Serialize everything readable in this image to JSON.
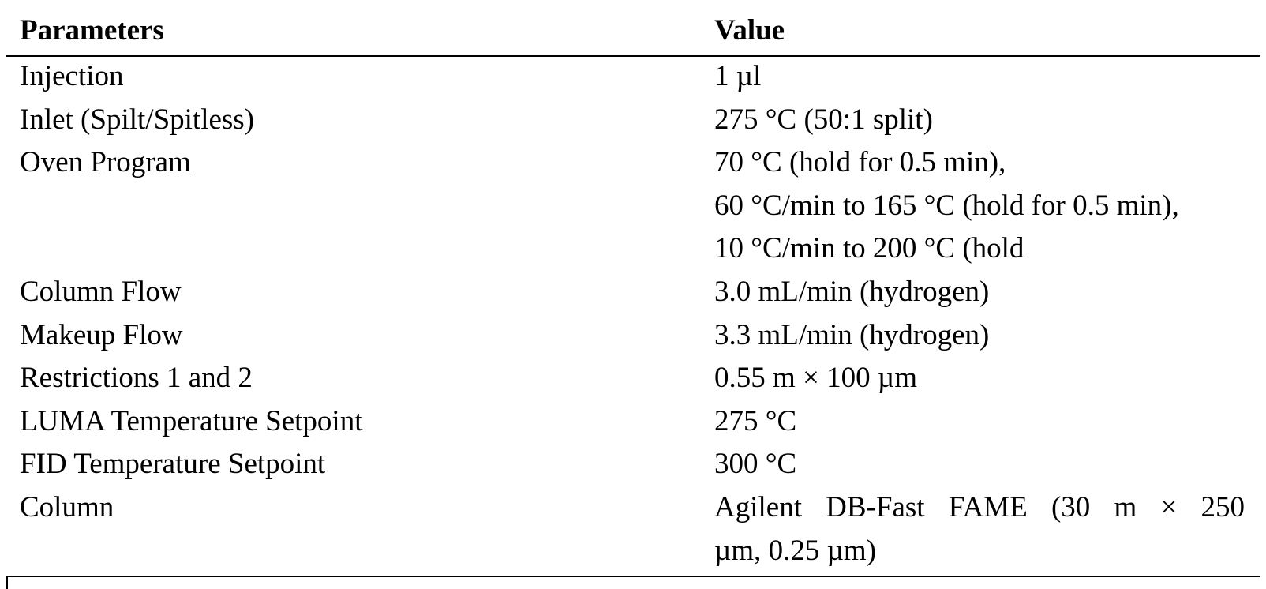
{
  "table": {
    "header": [
      "Parameters",
      "Value"
    ],
    "rows": [
      {
        "parameter": "Injection",
        "value": [
          "1 µl"
        ]
      },
      {
        "parameter": "Inlet (Spilt/Spitless)",
        "value": [
          "275 °C (50:1 split)"
        ]
      },
      {
        "parameter": "Oven Program",
        "value": [
          "70 °C (hold for 0.5 min),",
          "60 °C/min to 165 °C (hold for 0.5 min),",
          "10 °C/min to 200 °C (hold"
        ]
      },
      {
        "parameter": "Column Flow",
        "value": [
          "3.0 mL/min (hydrogen)"
        ]
      },
      {
        "parameter": "Makeup Flow",
        "value": [
          "3.3 mL/min (hydrogen)"
        ]
      },
      {
        "parameter": "Restrictions 1 and 2",
        "value": [
          "0.55 m × 100 µm"
        ]
      },
      {
        "parameter": "LUMA Temperature Setpoint",
        "value": [
          "275 °C"
        ]
      },
      {
        "parameter": "FID Temperature Setpoint",
        "value": [
          "300 °C"
        ]
      },
      {
        "parameter": "Column",
        "value": [
          "Agilent DB-Fast FAME (30 m × 250",
          "µm, 0.25 µm)"
        ]
      }
    ]
  }
}
